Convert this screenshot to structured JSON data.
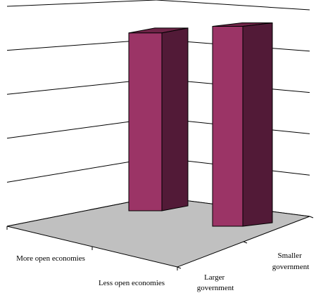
{
  "chart_data": {
    "type": "bar",
    "projection": "3d-perspective",
    "title": "",
    "xlabel": "",
    "ylabel": "",
    "grid": true,
    "legend": "none",
    "depth_categories": [
      "More open economies",
      "Less open economies"
    ],
    "width_categories": [
      "Larger government",
      "Smaller government"
    ],
    "series": [
      {
        "depth_category": "More open economies",
        "values": [
          null,
          null
        ]
      },
      {
        "depth_category": "Less open economies",
        "values": [
          0.83,
          0.87
        ]
      }
    ],
    "ylim": [
      0,
      1
    ],
    "y_ticks_count": 6
  },
  "colors": {
    "bar_front": "#9B3466",
    "bar_side": "#521A37",
    "bar_top": "#6E2447",
    "floor": "#C0C0C0",
    "gridline": "#000000"
  }
}
